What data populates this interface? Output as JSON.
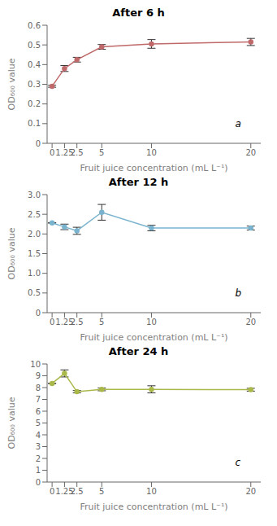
{
  "chart_data": [
    {
      "type": "line",
      "title": "After 6 h",
      "annotations": [
        "a"
      ],
      "x_label": "Fruit juice concentration (mL L⁻¹)",
      "y_label": "OD₆₀₀ value",
      "x": [
        0,
        1.25,
        2.5,
        5,
        10,
        20
      ],
      "values": [
        0.29,
        0.38,
        0.425,
        0.49,
        0.505,
        0.515
      ],
      "yerr": [
        0.005,
        0.015,
        0.012,
        0.012,
        0.022,
        0.018
      ],
      "color": "#c0696a",
      "marker": "circle",
      "grid": false,
      "xlim": [
        -0.5,
        21
      ],
      "xticks": [
        0,
        1.25,
        2.5,
        5,
        10,
        20
      ],
      "ylim": [
        0,
        0.6
      ],
      "yticks": [
        0,
        0.1,
        0.2,
        0.3,
        0.4,
        0.5,
        0.6
      ]
    },
    {
      "type": "line",
      "title": "After 12 h",
      "annotations": [
        "b"
      ],
      "x_label": "Fruit juice concentration (mL L⁻¹)",
      "y_label": "OD₆₀₀ value",
      "x": [
        0,
        1.25,
        2.5,
        5,
        10,
        20
      ],
      "values": [
        2.28,
        2.18,
        2.08,
        2.55,
        2.15,
        2.15
      ],
      "yerr": [
        0.005,
        0.07,
        0.09,
        0.2,
        0.07,
        0.05
      ],
      "color": "#7ab3ce",
      "marker": "circle",
      "grid": false,
      "xlim": [
        -0.5,
        21
      ],
      "xticks": [
        0,
        1.25,
        2.5,
        5,
        10,
        20
      ],
      "ylim": [
        0,
        3
      ],
      "yticks": [
        0,
        0.5,
        {
          "value": 1,
          "label": "1.0"
        },
        1.5,
        {
          "value": 2,
          "label": "2.0"
        },
        2.5,
        {
          "value": 3,
          "label": "3.0"
        }
      ]
    },
    {
      "type": "line",
      "title": "After 24 h",
      "annotations": [
        "c"
      ],
      "x_label": "Fruit juice concentration (mL L⁻¹)",
      "y_label": "OD₆₀₀ value",
      "x": [
        0,
        1.25,
        2.5,
        5,
        10,
        20
      ],
      "values": [
        8.35,
        9.2,
        7.65,
        7.85,
        7.85,
        7.82
      ],
      "yerr": [
        0.005,
        0.3,
        0.1,
        0.12,
        0.3,
        0.12
      ],
      "color": "#aab84a",
      "marker": "circle",
      "grid": false,
      "xlim": [
        -0.5,
        21
      ],
      "xticks": [
        0,
        1.25,
        2.5,
        5,
        10,
        20
      ],
      "ylim": [
        0,
        10
      ],
      "yticks": [
        0,
        1,
        2,
        3,
        4,
        5,
        6,
        7,
        8,
        9,
        10
      ]
    }
  ]
}
